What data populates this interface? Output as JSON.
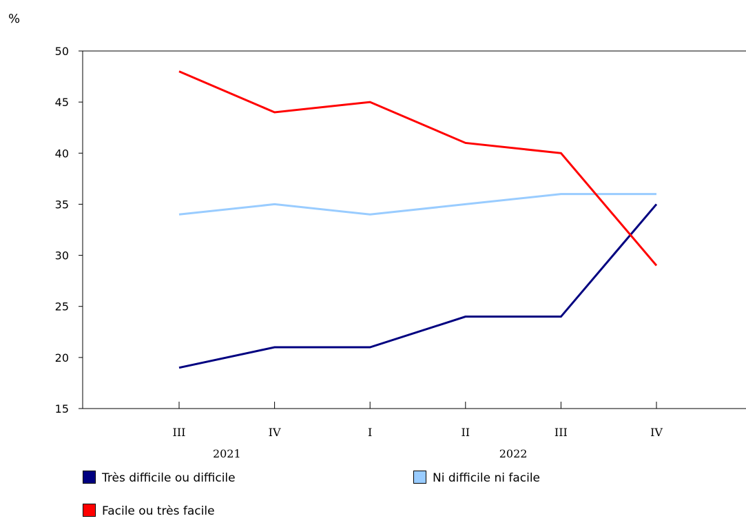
{
  "chart_data": {
    "type": "line",
    "ylabel": "%",
    "ylim": [
      15,
      50
    ],
    "yticks": [
      15,
      20,
      25,
      30,
      35,
      40,
      45,
      50
    ],
    "categories": [
      "III",
      "IV",
      "I",
      "II",
      "III",
      "IV"
    ],
    "year_labels": [
      "2021",
      "2022"
    ],
    "grid": false,
    "legend_placement": "bottom",
    "series": [
      {
        "name": "Très difficile ou difficile",
        "color": "#000080",
        "values": [
          19,
          21,
          21,
          24,
          24,
          35
        ]
      },
      {
        "name": "Ni difficile ni facile",
        "color": "#99ccff",
        "values": [
          34,
          35,
          34,
          35,
          36,
          36
        ]
      },
      {
        "name": "Facile ou très facile",
        "color": "#ff0000",
        "values": [
          48,
          44,
          45,
          41,
          40,
          29
        ]
      }
    ]
  }
}
